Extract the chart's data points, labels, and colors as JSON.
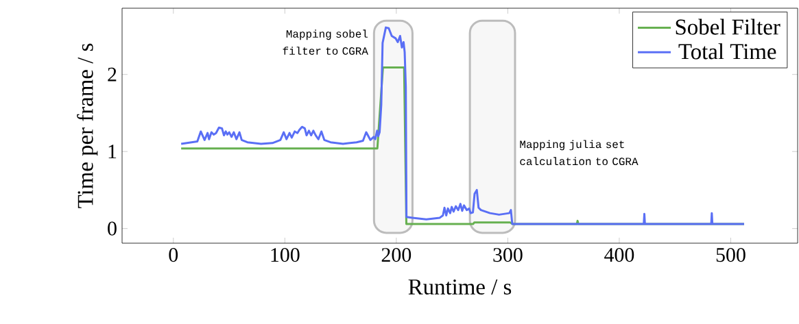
{
  "chart_data": {
    "type": "line",
    "xlabel": "Runtime / s",
    "ylabel": "Time per frame / s",
    "xlim": [
      -46,
      560
    ],
    "ylim": [
      -0.19,
      2.86
    ],
    "xticks": [
      0,
      100,
      200,
      300,
      400,
      500
    ],
    "yticks": [
      0,
      1,
      2
    ],
    "legend": "top right",
    "marker": "none",
    "line_style": "solid",
    "series": [
      {
        "name": "Sobel Filter",
        "color": "#66b050",
        "x": [
          7,
          183,
          188,
          207,
          209,
          269,
          270,
          302,
          304,
          362,
          362.6,
          363.2,
          512
        ],
        "values": [
          1.04,
          1.04,
          2.09,
          2.09,
          0.06,
          0.06,
          0.08,
          0.08,
          0.06,
          0.06,
          0.1,
          0.06,
          0.06
        ]
      },
      {
        "name": "Total Time",
        "color": "#5a6ff5",
        "x": [
          7,
          21.5,
          24.6,
          28,
          30.7,
          32,
          34.2,
          36.2,
          38.3,
          40.9,
          43.6,
          45.4,
          47,
          48.5,
          50.1,
          52.2,
          54.2,
          56.6,
          59.3,
          61.3,
          66.4,
          78.7,
          88.9,
          96,
          99,
          101.5,
          104.2,
          106.2,
          108.9,
          111.3,
          113,
          115.4,
          117.9,
          119.5,
          121.6,
          123.6,
          125.6,
          127.7,
          130.1,
          132.8,
          135.4,
          141,
          152.2,
          164.4,
          170.1,
          173,
          176.7,
          179.7,
          181.1,
          182.8,
          183.8,
          185,
          186.5,
          187.7,
          190.6,
          193.2,
          195.9,
          199.3,
          201.3,
          203.4,
          205,
          206.5,
          207.5,
          208.5,
          209.1,
          214.6,
          226.9,
          239,
          241.8,
          243.2,
          244.8,
          246.3,
          248.3,
          249.7,
          251.4,
          253.4,
          255.5,
          257.5,
          259.1,
          260.7,
          263.2,
          265.3,
          266.7,
          268.7,
          270.2,
          272.2,
          273.8,
          275.9,
          284,
          292.2,
          301.4,
          302.8,
          304,
          360,
          422,
          422.5,
          423,
          482.5,
          483,
          483.5,
          512
        ],
        "values": [
          1.1,
          1.13,
          1.26,
          1.15,
          1.24,
          1.16,
          1.25,
          1.22,
          1.24,
          1.31,
          1.3,
          1.21,
          1.26,
          1.22,
          1.25,
          1.19,
          1.25,
          1.16,
          1.25,
          1.15,
          1.12,
          1.1,
          1.11,
          1.15,
          1.25,
          1.16,
          1.24,
          1.18,
          1.26,
          1.24,
          1.28,
          1.32,
          1.3,
          1.21,
          1.27,
          1.21,
          1.27,
          1.21,
          1.16,
          1.26,
          1.15,
          1.12,
          1.1,
          1.12,
          1.14,
          1.25,
          1.15,
          1.19,
          1.16,
          1.27,
          1.2,
          1.25,
          1.61,
          2.41,
          2.61,
          2.6,
          2.5,
          2.47,
          2.42,
          2.5,
          2.35,
          2.42,
          2.29,
          1.84,
          0.15,
          0.14,
          0.12,
          0.14,
          0.17,
          0.27,
          0.17,
          0.26,
          0.2,
          0.28,
          0.22,
          0.29,
          0.24,
          0.32,
          0.23,
          0.3,
          0.24,
          0.26,
          0.2,
          0.21,
          0.45,
          0.5,
          0.27,
          0.24,
          0.2,
          0.18,
          0.2,
          0.24,
          0.06,
          0.06,
          0.06,
          0.19,
          0.06,
          0.06,
          0.2,
          0.06,
          0.06
        ]
      }
    ],
    "bands": [
      {
        "axis": "x",
        "from": 180,
        "to": 214.5,
        "label": "Mapping sobel filter to CGRA",
        "color": "#f7f7f7"
      },
      {
        "axis": "x",
        "from": 266,
        "to": 306.5,
        "label": "Mapping julia set calculation to CGRA",
        "color": "#f7f7f7"
      }
    ]
  }
}
